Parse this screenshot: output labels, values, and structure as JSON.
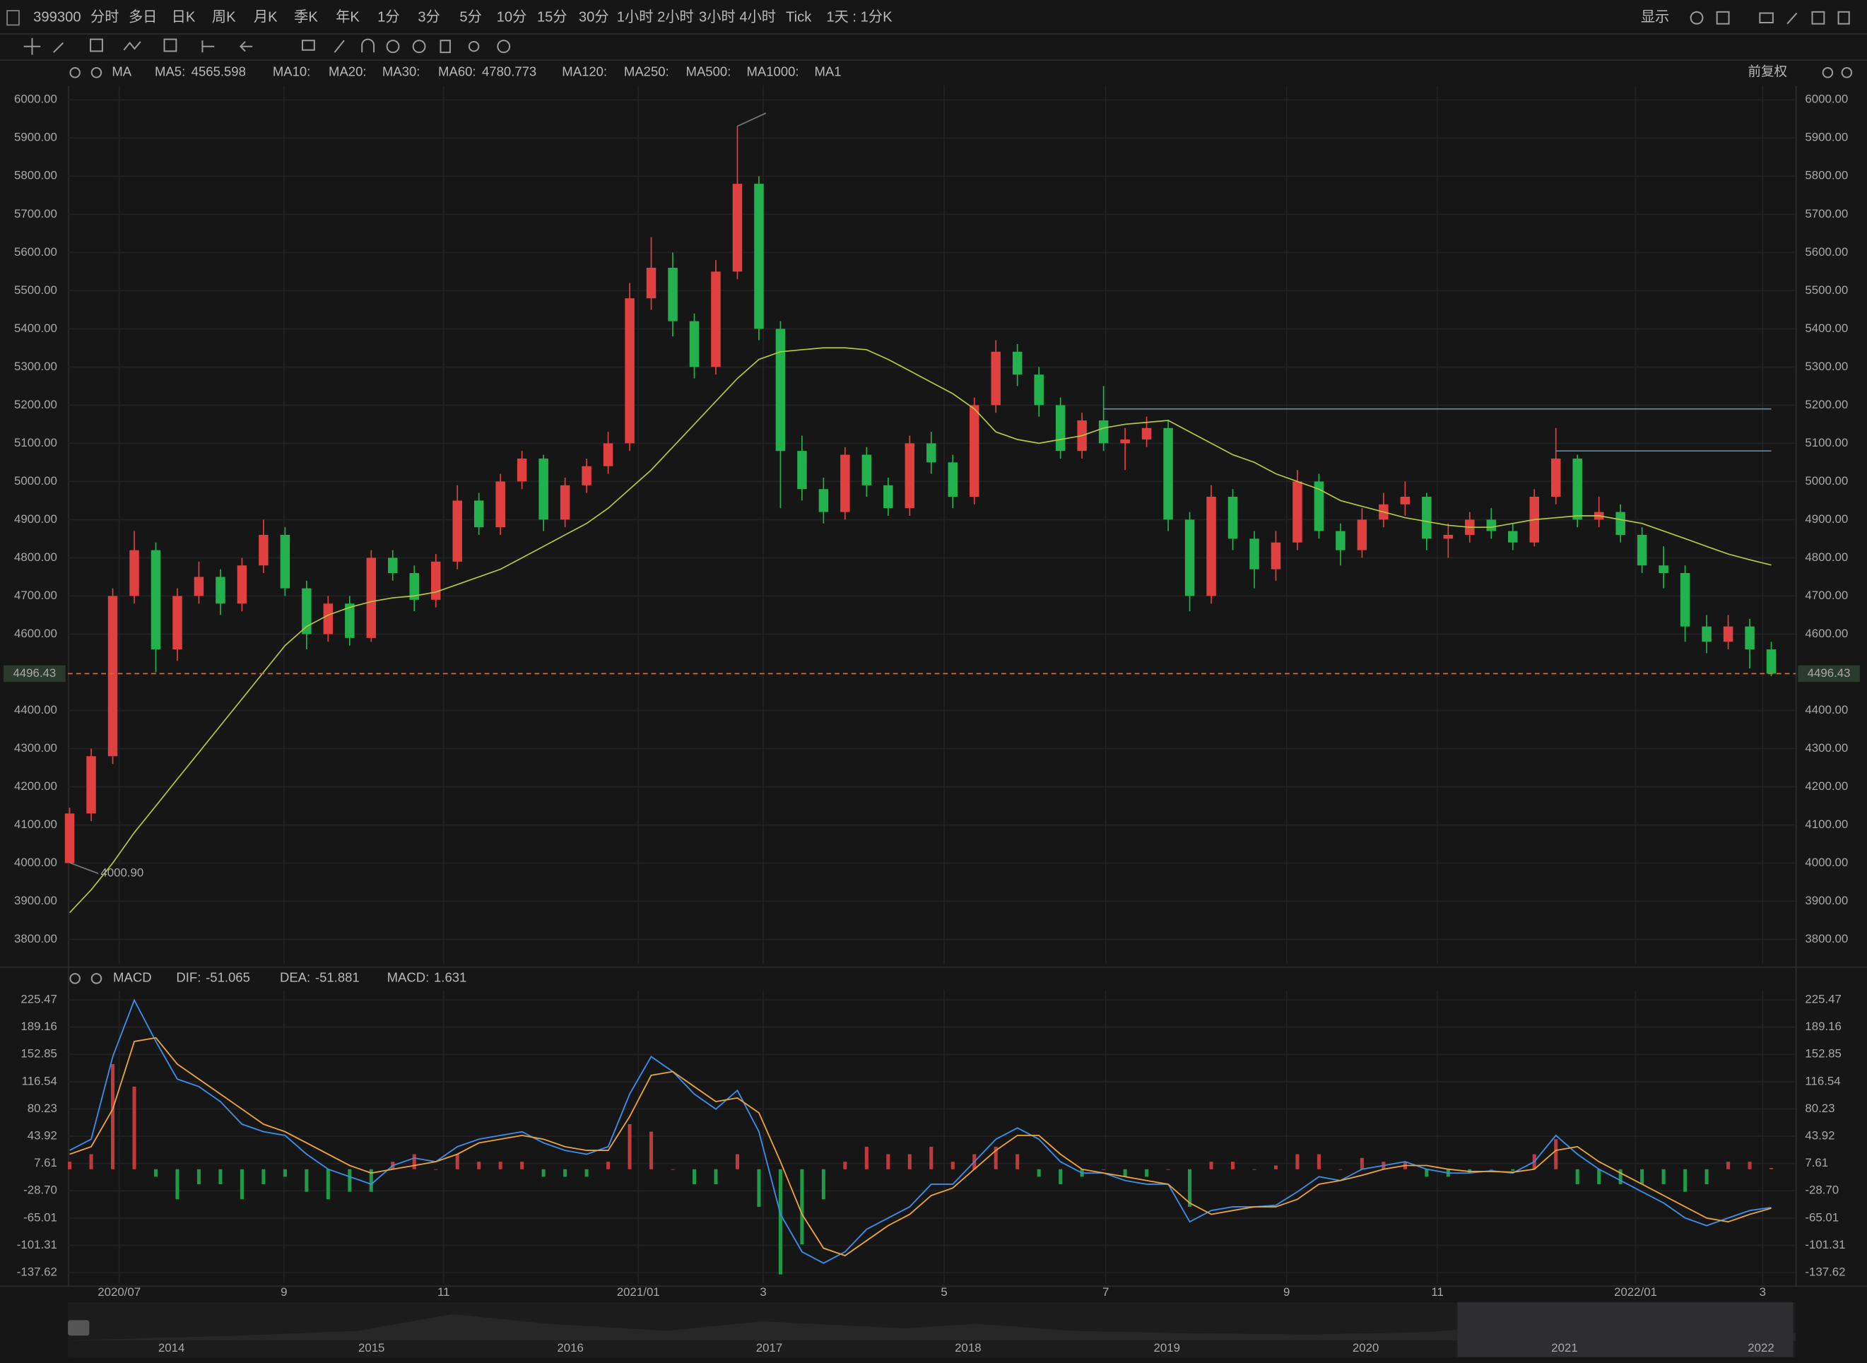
{
  "toolbar": {
    "symbol": "399300",
    "periods": [
      "分时",
      "多日",
      "日K",
      "周K",
      "月K",
      "季K",
      "年K",
      "1分",
      "3分",
      "5分",
      "10分",
      "15分",
      "30分",
      "1小时",
      "2小时",
      "3小时",
      "4小时",
      "Tick"
    ],
    "active_period": 2,
    "interval": "1天 : 1分K",
    "display": "显示",
    "adjust": "前复权"
  },
  "chart_data": [
    {
      "type": "candlestick",
      "indicator": "MA",
      "up_color": "#e0403f",
      "down_color": "#22b14c",
      "ylim": [
        3735,
        6037
      ],
      "yticks": [
        {
          "value": 6000,
          "label": "6000.00"
        },
        {
          "value": 5900,
          "label": "5900.00"
        },
        {
          "value": 5800,
          "label": "5800.00"
        },
        {
          "value": 5700,
          "label": "5700.00"
        },
        {
          "value": 5600,
          "label": "5600.00"
        },
        {
          "value": 5500,
          "label": "5500.00"
        },
        {
          "value": 5400,
          "label": "5400.00"
        },
        {
          "value": 5300,
          "label": "5300.00"
        },
        {
          "value": 5200,
          "label": "5200.00"
        },
        {
          "value": 5100,
          "label": "5100.00"
        },
        {
          "value": 5000,
          "label": "5000.00"
        },
        {
          "value": 4900,
          "label": "4900.00"
        },
        {
          "value": 4800,
          "label": "4800.00"
        },
        {
          "value": 4700,
          "label": "4700.00"
        },
        {
          "value": 4600,
          "label": "4600.00"
        },
        {
          "value": 4400,
          "label": "4400.00"
        },
        {
          "value": 4300,
          "label": "4300.00"
        },
        {
          "value": 4200,
          "label": "4200.00"
        },
        {
          "value": 4100,
          "label": "4100.00"
        },
        {
          "value": 4000,
          "label": "4000.00"
        },
        {
          "value": 3900,
          "label": "3900.00"
        },
        {
          "value": 3800,
          "label": "3800.00"
        }
      ],
      "xticks": [
        {
          "value": 2.3,
          "label": "2020/07"
        },
        {
          "value": 9.95,
          "label": "9"
        },
        {
          "value": 17.36,
          "label": "11"
        },
        {
          "value": 26.4,
          "label": "2021/01"
        },
        {
          "value": 32.2,
          "label": "3"
        },
        {
          "value": 40.6,
          "label": "5"
        },
        {
          "value": 48.1,
          "label": "7"
        },
        {
          "value": 56.5,
          "label": "9"
        },
        {
          "value": 63.5,
          "label": "11"
        },
        {
          "value": 72.7,
          "label": "2022/01"
        },
        {
          "value": 78.6,
          "label": "3"
        }
      ],
      "grid": true,
      "open": [
        4000,
        4130,
        4280,
        4700,
        4820,
        4560,
        4700,
        4750,
        4680,
        4780,
        4860,
        4720,
        4600,
        4680,
        4590,
        4800,
        4760,
        4690,
        4790,
        4950,
        4880,
        5000,
        5060,
        4900,
        4990,
        5040,
        5100,
        5480,
        5560,
        5420,
        5300,
        5550,
        5780,
        5400,
        5080,
        4980,
        4920,
        5070,
        4990,
        4930,
        5100,
        5050,
        4960,
        5200,
        5340,
        5280,
        5200,
        5080,
        5160,
        5100,
        5110,
        5140,
        4900,
        4700,
        4960,
        4850,
        4770,
        4840,
        5000,
        4870,
        4820,
        4900,
        4940,
        4960,
        4850,
        4860,
        4900,
        4870,
        4840,
        4960,
        5060,
        4900,
        4920,
        4860,
        4780,
        4760,
        4620,
        4580,
        4620,
        4560
      ],
      "high": [
        4145,
        4300,
        4720,
        4870,
        4840,
        4720,
        4790,
        4770,
        4800,
        4900,
        4880,
        4740,
        4700,
        4700,
        4820,
        4820,
        4780,
        4810,
        4990,
        4970,
        5020,
        5080,
        5070,
        5010,
        5060,
        5130,
        5520,
        5640,
        5600,
        5440,
        5580,
        5930.91,
        5800,
        5420,
        5120,
        5010,
        5090,
        5090,
        5010,
        5120,
        5130,
        5070,
        5220,
        5370,
        5360,
        5300,
        5220,
        5180,
        5250,
        5140,
        5170,
        5160,
        4920,
        4990,
        4980,
        4870,
        4870,
        5030,
        5020,
        4890,
        4930,
        4970,
        5000,
        4970,
        4890,
        4920,
        4930,
        4890,
        4980,
        5140,
        5070,
        4960,
        4940,
        4880,
        4830,
        4780,
        4650,
        4650,
        4640,
        4580
      ],
      "low": [
        4000.9,
        4110,
        4260,
        4680,
        4500,
        4530,
        4680,
        4650,
        4660,
        4760,
        4700,
        4560,
        4580,
        4570,
        4580,
        4740,
        4660,
        4670,
        4770,
        4860,
        4860,
        4980,
        4870,
        4880,
        4970,
        5020,
        5080,
        5450,
        5380,
        5270,
        5280,
        5530,
        5370,
        4930,
        4950,
        4890,
        4900,
        4960,
        4910,
        4910,
        5020,
        4930,
        4940,
        5180,
        5250,
        5170,
        5060,
        5060,
        5080,
        5030,
        5090,
        4870,
        4660,
        4680,
        4820,
        4720,
        4740,
        4820,
        4850,
        4780,
        4800,
        4880,
        4910,
        4820,
        4800,
        4840,
        4850,
        4820,
        4830,
        4940,
        4880,
        4880,
        4840,
        4760,
        4720,
        4580,
        4550,
        4560,
        4510,
        4490
      ],
      "close": [
        4130,
        4280,
        4700,
        4820,
        4560,
        4700,
        4750,
        4680,
        4780,
        4860,
        4720,
        4600,
        4680,
        4590,
        4800,
        4760,
        4690,
        4790,
        4950,
        4880,
        5000,
        5060,
        4900,
        4990,
        5040,
        5100,
        5480,
        5560,
        5420,
        5300,
        5550,
        5780,
        5400,
        5080,
        4980,
        4920,
        5070,
        4990,
        4930,
        5100,
        5050,
        4960,
        5200,
        5340,
        5280,
        5200,
        5080,
        5160,
        5100,
        5110,
        5140,
        4900,
        4700,
        4960,
        4850,
        4770,
        4840,
        5000,
        4870,
        4820,
        4900,
        4940,
        4960,
        4850,
        4860,
        4900,
        4870,
        4840,
        4960,
        5060,
        4900,
        4920,
        4860,
        4780,
        4760,
        4620,
        4580,
        4620,
        4560,
        4496.43
      ],
      "series": [
        {
          "name": "MA5:",
          "color": "#a9a9a9",
          "last": 4565.598
        },
        {
          "name": "MA10:",
          "color": "#8a6a2a"
        },
        {
          "name": "MA20:",
          "color": "#7a4f8c"
        },
        {
          "name": "MA30:",
          "color": "#a2603b"
        },
        {
          "name": "MA60:",
          "color": "#b5c93a",
          "values": [
            3870,
            3930,
            4000,
            4080,
            4150,
            4220,
            4290,
            4360,
            4430,
            4500,
            4570,
            4620,
            4650,
            4670,
            4685,
            4695,
            4700,
            4710,
            4730,
            4750,
            4770,
            4800,
            4830,
            4860,
            4890,
            4930,
            4980,
            5030,
            5090,
            5150,
            5210,
            5270,
            5320,
            5340,
            5345,
            5350,
            5350,
            5345,
            5320,
            5290,
            5260,
            5230,
            5190,
            5130,
            5110,
            5100,
            5110,
            5120,
            5140,
            5150,
            5155,
            5160,
            5130,
            5100,
            5070,
            5050,
            5020,
            5000,
            4980,
            4950,
            4935,
            4920,
            4905,
            4895,
            4885,
            4880,
            4880,
            4890,
            4900,
            4905,
            4910,
            4910,
            4900,
            4890,
            4870,
            4850,
            4830,
            4810,
            4795,
            4780.773
          ]
        },
        {
          "name": "MA120:",
          "color": "#8a5a3a"
        },
        {
          "name": "MA250:",
          "color": "#8a3a3a"
        },
        {
          "name": "MA500:",
          "color": "#3a6a7a"
        },
        {
          "name": "MA1000:",
          "color": "#8a3a5a"
        },
        {
          "name": "MA1",
          "color": "#555555"
        }
      ],
      "hlines": [
        {
          "value": 5190,
          "from": 48,
          "to": 79
        },
        {
          "value": 5080,
          "from": 69,
          "to": 79
        }
      ],
      "annotations": [
        {
          "value": 5930.91,
          "x": 31
        },
        {
          "value": 4000.9,
          "label": "4000.90",
          "x": 0
        }
      ],
      "price_line_color": "#e0662e"
    },
    {
      "type": "macd",
      "indicator": "MACD",
      "ylim": [
        -151.77,
        238.04
      ],
      "yticks": [
        225.47,
        189.16,
        152.85,
        116.54,
        80.23,
        43.92,
        7.61,
        {
          "value": -28.7,
          "label": "-28.70"
        },
        -65.01,
        -101.31,
        -137.62
      ],
      "series": [
        {
          "name": "DIF:",
          "color": "#3b8ee8",
          "style": "line",
          "values": [
            25,
            40,
            150,
            225,
            170,
            120,
            110,
            90,
            60,
            50,
            45,
            20,
            0,
            -10,
            -20,
            5,
            15,
            10,
            30,
            40,
            45,
            50,
            35,
            25,
            20,
            30,
            100,
            150,
            130,
            100,
            80,
            105,
            50,
            -60,
            -110,
            -125,
            -110,
            -80,
            -65,
            -50,
            -20,
            -20,
            10,
            40,
            55,
            40,
            10,
            -5,
            -5,
            -15,
            -20,
            -20,
            -70,
            -55,
            -50,
            -50,
            -48,
            -30,
            -10,
            -15,
            0,
            5,
            10,
            0,
            -5,
            -5,
            -2,
            -5,
            10,
            45,
            20,
            0,
            -15,
            -30,
            -45,
            -65,
            -75,
            -65,
            -55,
            -51.065
          ]
        },
        {
          "name": "DEA:",
          "color": "#e8a33b",
          "style": "line",
          "values": [
            20,
            30,
            80,
            170,
            175,
            140,
            120,
            100,
            80,
            60,
            50,
            35,
            20,
            5,
            -5,
            0,
            5,
            10,
            20,
            35,
            40,
            45,
            40,
            30,
            25,
            25,
            70,
            125,
            130,
            110,
            90,
            95,
            75,
            10,
            -60,
            -105,
            -115,
            -95,
            -75,
            -60,
            -35,
            -25,
            0,
            25,
            45,
            45,
            20,
            0,
            -5,
            -10,
            -15,
            -20,
            -45,
            -60,
            -55,
            -50,
            -50,
            -40,
            -20,
            -15,
            -8,
            0,
            5,
            5,
            0,
            -3,
            -3,
            -4,
            0,
            25,
            30,
            10,
            -5,
            -20,
            -35,
            -50,
            -65,
            -70,
            -60,
            -51.881
          ]
        },
        {
          "name": "MACD:",
          "color": "#d050d0",
          "style": "bar",
          "up_color": "#c0393b",
          "down_color": "#1f9a48",
          "values": [
            10,
            20,
            140,
            110,
            -10,
            -40,
            -20,
            -20,
            -40,
            -20,
            -10,
            -30,
            -40,
            -30,
            -30,
            10,
            20,
            0,
            20,
            10,
            10,
            10,
            -10,
            -10,
            -10,
            10,
            60,
            50,
            0,
            -20,
            -20,
            20,
            -50,
            -140,
            -100,
            -40,
            10,
            30,
            20,
            20,
            30,
            10,
            20,
            30,
            20,
            -10,
            -20,
            -10,
            0,
            -10,
            -10,
            0,
            -50,
            10,
            10,
            0,
            5,
            20,
            20,
            0,
            15,
            10,
            10,
            -10,
            -10,
            -5,
            0,
            -2,
            20,
            40,
            -20,
            -20,
            -20,
            -20,
            -20,
            -30,
            -20,
            10,
            10,
            1.631
          ]
        }
      ]
    }
  ],
  "navigator": {
    "labels": [
      "2014",
      "2015",
      "2016",
      "2017",
      "2018",
      "2019",
      "2020",
      "2021",
      "2022"
    ]
  }
}
